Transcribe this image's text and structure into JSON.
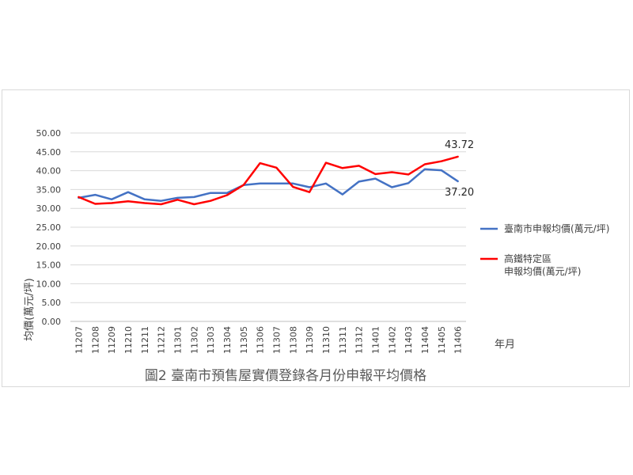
{
  "chart_data": {
    "type": "line",
    "title": "圖2  臺南市預售屋實價登錄各月份申報平均價格",
    "xlabel": "年月",
    "ylabel": "均價(萬元/坪)",
    "ylim": [
      0,
      50
    ],
    "yticks": [
      "0.00",
      "5.00",
      "10.00",
      "15.00",
      "20.00",
      "25.00",
      "30.00",
      "35.00",
      "40.00",
      "45.00",
      "50.00"
    ],
    "grid": true,
    "legend_position": "right",
    "categories": [
      "11207",
      "11208",
      "11209",
      "11210",
      "11211",
      "11212",
      "11301",
      "11302",
      "11303",
      "11304",
      "11305",
      "11306",
      "11307",
      "11308",
      "11309",
      "11310",
      "11311",
      "11312",
      "11401",
      "11402",
      "11403",
      "11404",
      "11405",
      "11406"
    ],
    "series": [
      {
        "name": "臺南市申報均價(萬元/坪)",
        "color": "#4472c4",
        "values": [
          32.8,
          33.6,
          32.4,
          34.3,
          32.4,
          32.0,
          32.8,
          33.0,
          34.1,
          34.1,
          36.2,
          36.6,
          36.6,
          36.6,
          35.6,
          36.6,
          33.7,
          37.1,
          37.9,
          35.6,
          36.7,
          40.4,
          40.1,
          37.2
        ],
        "end_label": "37.20"
      },
      {
        "name": "高鐵特定區\n申報均價(萬元/坪)",
        "legend_lines": [
          "高鐵特定區",
          "申報均價(萬元/坪)"
        ],
        "color": "#ff0000",
        "values": [
          33.0,
          31.2,
          31.4,
          31.9,
          31.4,
          31.1,
          32.3,
          31.1,
          32.0,
          33.5,
          36.2,
          42.0,
          40.8,
          35.7,
          34.3,
          42.1,
          40.7,
          41.3,
          39.1,
          39.6,
          39.0,
          41.7,
          42.5,
          43.72
        ],
        "end_label": "43.72"
      }
    ]
  }
}
